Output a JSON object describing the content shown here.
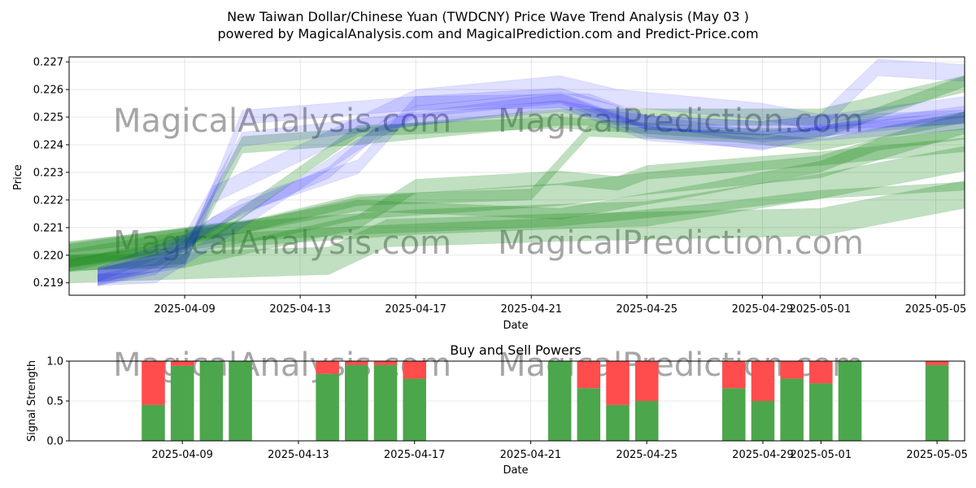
{
  "figure": {
    "title_line1": "New Taiwan Dollar/Chinese Yuan (TWDCNY) Price Wave Trend Analysis (May 03 )",
    "title_line2": "powered by MagicalAnalysis.com and MagicalPrediction.com and Predict-Price.com",
    "watermarks": [
      "MagicalAnalysis.com",
      "MagicalPrediction.com"
    ]
  },
  "chart_data": [
    {
      "type": "area",
      "title": "",
      "xlabel": "Date",
      "ylabel": "Price",
      "xlim": [
        "2025-04-05",
        "2025-05-06"
      ],
      "ylim": [
        0.21855,
        0.22718
      ],
      "x_ticks": [
        "2025-04-09",
        "2025-04-13",
        "2025-04-17",
        "2025-04-21",
        "2025-04-25",
        "2025-04-29",
        "2025-05-01",
        "2025-05-05"
      ],
      "y_ticks": [
        0.219,
        0.22,
        0.221,
        0.222,
        0.223,
        0.224,
        0.225,
        0.226,
        0.227
      ],
      "grid": true,
      "colors": {
        "blue": "#0000ff",
        "green": "#228b22"
      },
      "series": [
        {
          "color": "green",
          "band": 0.001,
          "x": [
            "2025-04-05",
            "2025-04-14",
            "2025-04-16",
            "2025-04-22",
            "2025-05-01",
            "2025-05-06"
          ],
          "y": [
            0.2195,
            0.2198,
            0.2208,
            0.221,
            0.2212,
            0.2222
          ]
        },
        {
          "color": "green",
          "band": 0.0009,
          "x": [
            "2025-04-05",
            "2025-04-10",
            "2025-04-17",
            "2025-04-22",
            "2025-04-25",
            "2025-05-01",
            "2025-05-06"
          ],
          "y": [
            0.22,
            0.2207,
            0.2212,
            0.2214,
            0.2215,
            0.2225,
            0.2235
          ]
        },
        {
          "color": "green",
          "band": 0.0008,
          "x": [
            "2025-04-05",
            "2025-04-12",
            "2025-04-15",
            "2025-04-22",
            "2025-04-25",
            "2025-05-01",
            "2025-05-06"
          ],
          "y": [
            0.22,
            0.221,
            0.2217,
            0.2222,
            0.2226,
            0.2232,
            0.2248
          ]
        },
        {
          "color": "green",
          "band": 0.0005,
          "x": [
            "2025-04-05",
            "2025-04-09",
            "2025-04-15",
            "2025-04-17",
            "2025-04-22",
            "2025-04-24",
            "2025-04-25",
            "2025-05-01",
            "2025-05-06"
          ],
          "y": [
            0.2197,
            0.2198,
            0.2212,
            0.2225,
            0.2228,
            0.2226,
            0.223,
            0.2235,
            0.224
          ]
        },
        {
          "color": "green",
          "band": 0.0003,
          "x": [
            "2025-04-05",
            "2025-04-10",
            "2025-04-15",
            "2025-04-22",
            "2025-04-27",
            "2025-05-01",
            "2025-05-06"
          ],
          "y": [
            0.2197,
            0.2206,
            0.2209,
            0.2212,
            0.2217,
            0.2222,
            0.2225
          ]
        },
        {
          "color": "green",
          "band": 0.0004,
          "x": [
            "2025-04-05",
            "2025-04-11",
            "2025-04-15",
            "2025-04-22",
            "2025-04-27",
            "2025-05-01",
            "2025-05-03",
            "2025-05-06"
          ],
          "y": [
            0.2203,
            0.221,
            0.2218,
            0.2215,
            0.2224,
            0.2232,
            0.224,
            0.2244
          ]
        },
        {
          "color": "green",
          "band": 0.0004,
          "x": [
            "2025-04-05",
            "2025-04-11",
            "2025-04-15",
            "2025-04-21",
            "2025-04-23",
            "2025-04-28",
            "2025-05-01",
            "2025-05-06"
          ],
          "y": [
            0.22,
            0.221,
            0.222,
            0.2222,
            0.2245,
            0.2243,
            0.224,
            0.225
          ]
        },
        {
          "color": "green",
          "band": 0.0006,
          "x": [
            "2025-04-05",
            "2025-04-09",
            "2025-04-11",
            "2025-04-15",
            "2025-04-22",
            "2025-05-01",
            "2025-05-06"
          ],
          "y": [
            0.2197,
            0.22,
            0.224,
            0.2243,
            0.225,
            0.225,
            0.2262
          ]
        },
        {
          "color": "green",
          "band": 0.0004,
          "x": [
            "2025-04-05",
            "2025-04-10",
            "2025-04-15",
            "2025-04-22",
            "2025-04-28",
            "2025-05-01",
            "2025-05-06"
          ],
          "y": [
            0.2196,
            0.2208,
            0.2245,
            0.2248,
            0.2244,
            0.2244,
            0.2263
          ]
        },
        {
          "color": "blue",
          "band": 0.0004,
          "x": [
            "2025-04-06",
            "2025-04-08",
            "2025-04-10",
            "2025-04-14",
            "2025-04-16",
            "2025-04-22",
            "2025-04-24",
            "2025-04-29",
            "2025-05-01",
            "2025-05-06"
          ],
          "y": [
            0.2191,
            0.2195,
            0.2212,
            0.223,
            0.2248,
            0.2254,
            0.225,
            0.2243,
            0.2245,
            0.2252
          ]
        },
        {
          "color": "blue",
          "band": 0.0005,
          "x": [
            "2025-04-06",
            "2025-04-09",
            "2025-04-11",
            "2025-04-16",
            "2025-04-22",
            "2025-04-25",
            "2025-04-29",
            "2025-05-01",
            "2025-05-06"
          ],
          "y": [
            0.2193,
            0.2205,
            0.2242,
            0.2248,
            0.2256,
            0.2244,
            0.2241,
            0.2244,
            0.2248
          ]
        },
        {
          "color": "blue",
          "band": 0.0005,
          "x": [
            "2025-04-06",
            "2025-04-09",
            "2025-04-11",
            "2025-04-17",
            "2025-04-22",
            "2025-04-25",
            "2025-04-29",
            "2025-05-01",
            "2025-05-06"
          ],
          "y": [
            0.2193,
            0.2198,
            0.225,
            0.2255,
            0.2258,
            0.2248,
            0.2246,
            0.2248,
            0.225
          ]
        },
        {
          "color": "blue",
          "band": 0.0004,
          "x": [
            "2025-04-06",
            "2025-04-08",
            "2025-04-10",
            "2025-04-15",
            "2025-04-17",
            "2025-04-22",
            "2025-04-25",
            "2025-04-29",
            "2025-05-01",
            "2025-05-06"
          ],
          "y": [
            0.2191,
            0.2192,
            0.2205,
            0.224,
            0.2252,
            0.2257,
            0.2245,
            0.224,
            0.2245,
            0.225
          ]
        },
        {
          "color": "blue",
          "band": 0.0006,
          "x": [
            "2025-04-06",
            "2025-04-09",
            "2025-04-10",
            "2025-04-17",
            "2025-04-22",
            "2025-04-24",
            "2025-04-29",
            "2025-05-01",
            "2025-05-03",
            "2025-05-06"
          ],
          "y": [
            0.2192,
            0.22,
            0.2222,
            0.2257,
            0.2262,
            0.2257,
            0.2252,
            0.2248,
            0.2268,
            0.2266
          ]
        },
        {
          "color": "blue",
          "band": 0.0005,
          "x": [
            "2025-04-06",
            "2025-04-08",
            "2025-04-11",
            "2025-04-15",
            "2025-04-17",
            "2025-04-23",
            "2025-04-25",
            "2025-04-29",
            "2025-05-01",
            "2025-05-06"
          ],
          "y": [
            0.2192,
            0.2198,
            0.2218,
            0.2232,
            0.2255,
            0.2256,
            0.2248,
            0.2246,
            0.2248,
            0.2255
          ]
        }
      ]
    },
    {
      "type": "bar",
      "title": "Buy and Sell Powers",
      "xlabel": "Date",
      "ylabel": "Signal Strength",
      "ylim": [
        0.0,
        1.0
      ],
      "y_ticks": [
        0.0,
        0.5,
        1.0
      ],
      "x_ticks": [
        "2025-04-09",
        "2025-04-13",
        "2025-04-17",
        "2025-04-21",
        "2025-04-25",
        "2025-04-29",
        "2025-05-01",
        "2025-05-05"
      ],
      "grid": true,
      "colors": {
        "buy": "#4ca64c",
        "sell": "#ff4c4c"
      },
      "x": [
        "2025-04-08",
        "2025-04-09",
        "2025-04-10",
        "2025-04-11",
        "2025-04-14",
        "2025-04-15",
        "2025-04-16",
        "2025-04-17",
        "2025-04-22",
        "2025-04-23",
        "2025-04-24",
        "2025-04-25",
        "2025-04-28",
        "2025-04-29",
        "2025-04-30",
        "2025-05-01",
        "2025-05-02",
        "2025-05-05"
      ],
      "series": [
        {
          "name": "Buy",
          "values": [
            0.45,
            0.94,
            1.0,
            1.0,
            0.84,
            0.95,
            0.95,
            0.78,
            1.0,
            0.66,
            0.45,
            0.5,
            0.66,
            0.5,
            0.78,
            0.72,
            1.0,
            0.95
          ]
        },
        {
          "name": "Sell",
          "values": [
            0.55,
            0.06,
            0.0,
            0.0,
            0.16,
            0.05,
            0.05,
            0.22,
            0.0,
            0.34,
            0.55,
            0.5,
            0.34,
            0.5,
            0.22,
            0.28,
            0.0,
            0.05
          ]
        }
      ]
    }
  ]
}
